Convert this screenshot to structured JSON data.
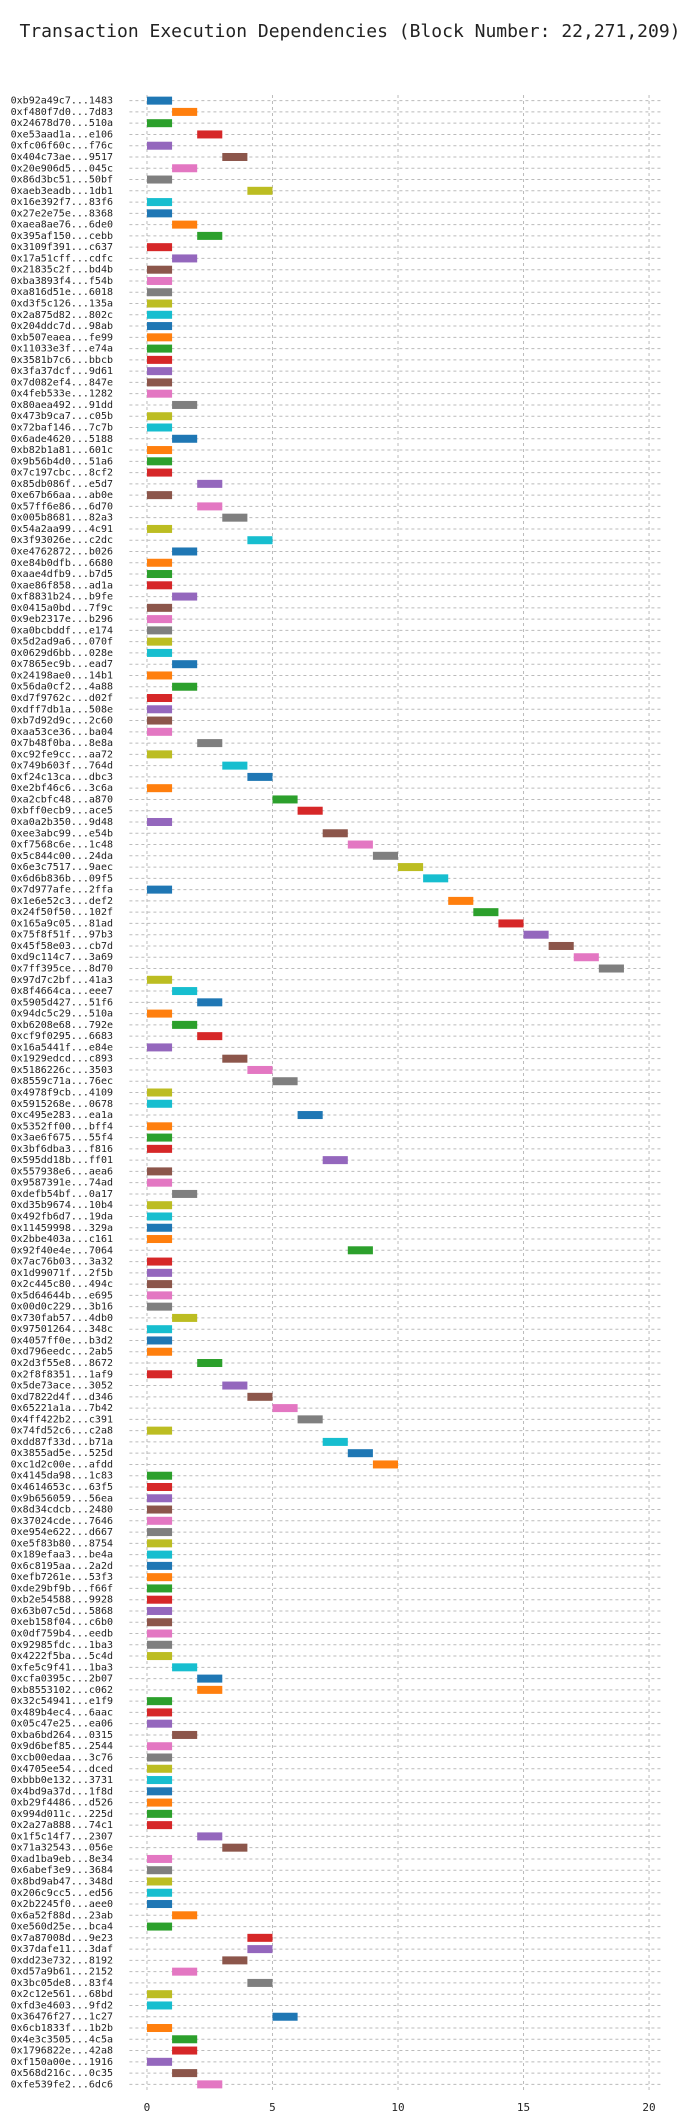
{
  "chart_data": {
    "type": "gantt",
    "title": "Transaction Execution Dependencies (Block Number: 22,271,209)",
    "colors": [
      "#1f77b4",
      "#ff7f0e",
      "#2ca02c",
      "#d62728",
      "#9467bd",
      "#8c564b",
      "#e377c2",
      "#7f7f7f",
      "#bcbd22",
      "#17becf"
    ],
    "categories": [
      "0xb92a49c7...1483",
      "0xf480f7d0...7d83",
      "0x24678d70...510a",
      "0xe53aad1a...e106",
      "0xfc06f60c...f76c",
      "0x404c73ae...9517",
      "0x20e906d5...045c",
      "0x86d3bc51...50bf",
      "0xaeb3eadb...1db1",
      "0x16e392f7...83f6",
      "0x27e2e75e...8368",
      "0xaea8ae76...6de0",
      "0x395af150...cebb",
      "0x3109f391...c637",
      "0x17a51cff...cdfc",
      "0x21835c2f...bd4b",
      "0xba3893f4...f54b",
      "0xa816d51e...6018",
      "0xd3f5c126...135a",
      "0x2a875d82...802c",
      "0x204ddc7d...98ab",
      "0xb507eaea...fe99",
      "0x11033e3f...e74a",
      "0x3581b7c6...bbcb",
      "0x3fa37dcf...9d61",
      "0x7d082ef4...847e",
      "0x4feb533e...1282",
      "0x80aea492...91dd",
      "0x473b9ca7...c05b",
      "0x72baf146...7c7b",
      "0x6ade4620...5188",
      "0xb82b1a81...601c",
      "0x9b56b4d0...51a6",
      "0x7c197cbc...8cf2",
      "0x85db086f...e5d7",
      "0xe67b66aa...ab0e",
      "0x57ff6e86...6d70",
      "0x005b8681...82a3",
      "0x54a2aa99...4c91",
      "0x3f93026e...c2dc",
      "0xe4762872...b026",
      "0xe84b0dfb...6680",
      "0xaae4dfb9...b7d5",
      "0xae86f858...ad1a",
      "0xf8831b24...b9fe",
      "0x0415a0bd...7f9c",
      "0x9eb2317e...b296",
      "0xa0bcbddf...e174",
      "0x5d2ad9a6...070f",
      "0x0629d6bb...028e",
      "0x7865ec9b...ead7",
      "0x24198ae0...14b1",
      "0x56da0cf2...4a88",
      "0xd7f9762c...d02f",
      "0xdff7db1a...508e",
      "0xb7d92d9c...2c60",
      "0xaa53ce36...ba04",
      "0x7b48f0ba...8e8a",
      "0xc92fe9cc...aa72",
      "0x749b603f...764d",
      "0xf24c13ca...dbc3",
      "0xe2bf46c6...3c6a",
      "0xa2cbfc48...a870",
      "0xbff0ecb9...ace5",
      "0xa0a2b350...9d48",
      "0xee3abc99...e54b",
      "0xf7568c6e...1c48",
      "0x5c844c00...24da",
      "0x6e3c7517...9aec",
      "0x6d6b836b...09f5",
      "0x7d977afe...2ffa",
      "0x1e6e52c3...def2",
      "0x24f50f50...102f",
      "0x165a9c05...81ad",
      "0x75f8f51f...97b3",
      "0x45f58e03...cb7d",
      "0xd9c114c7...3a69",
      "0x7ff395ce...8d70",
      "0x97d7c2bf...41a3",
      "0x8f4664ca...eee7",
      "0x5905d427...51f6",
      "0x94dc5c29...510a",
      "0xb6208e68...792e",
      "0xcf9f0295...6683",
      "0x16a5441f...e84e",
      "0x1929edcd...c893",
      "0x5186226c...3503",
      "0x8559c71a...76ec",
      "0x4978f9cb...4109",
      "0x5915268e...0678",
      "0xc495e283...ea1a",
      "0x5352ff00...bff4",
      "0x3ae6f675...55f4",
      "0x3bf6dba3...f816",
      "0x595dd18b...ff01",
      "0x557938e6...aea6",
      "0x9587391e...74ad",
      "0xdefb54bf...0a17",
      "0xd35b9674...10b4",
      "0x492fb6d7...19da",
      "0x11459998...329a",
      "0x2bbe403a...c161",
      "0x92f40e4e...7064",
      "0x7ac76b03...3a32",
      "0x1d99071f...2f5b",
      "0x2c445c80...494c",
      "0x5d64644b...e695",
      "0x00d0c229...3b16",
      "0x730fab57...4db0",
      "0x97501264...348c",
      "0x4057ff0e...b3d2",
      "0xd796eedc...2ab5",
      "0x2d3f55e8...8672",
      "0x2f8f8351...1af9",
      "0x5de73ace...3052",
      "0xd7822d4f...d346",
      "0x65221a1a...7b42",
      "0x4ff422b2...c391",
      "0x74fd52c6...c2a8",
      "0xdd87f33d...b71a",
      "0x3855ad5e...525d",
      "0xc1d2c00e...afdd",
      "0x4145da98...1c83",
      "0x4614653c...63f5",
      "0x9b656059...56ea",
      "0x8d34cdcb...2480",
      "0x37024cde...7646",
      "0xe954e622...d667",
      "0xe5f83b80...8754",
      "0x189efaa3...be4a",
      "0x6c8195aa...2a2d",
      "0xefb7261e...53f3",
      "0xde29bf9b...f66f",
      "0xb2e54588...9928",
      "0x63b07c5d...5868",
      "0xeb158f04...c6b0",
      "0x0df759b4...eedb",
      "0x92985fdc...1ba3",
      "0x4222f5ba...5c4d",
      "0xfe5c9f41...1ba3",
      "0xcfa0395c...2b07",
      "0xb8553102...c062",
      "0x32c54941...e1f9",
      "0x489b4ec4...6aac",
      "0x05c47e25...ea06",
      "0xba6bd264...0315",
      "0x9d6bef85...2544",
      "0xcb00edaa...3c76",
      "0x4705ee54...dced",
      "0xbbb0e132...3731",
      "0x4bd9a37d...1f8d",
      "0xb29f4486...d526",
      "0x994d011c...225d",
      "0x2a27a888...74c1",
      "0x1f5c14f7...2307",
      "0x71a32543...056e",
      "0xad1ba9eb...8e34",
      "0x6abef3e9...3684",
      "0x8bd9ab47...348d",
      "0x206c9cc5...ed56",
      "0x2b2245f0...aee0",
      "0x6a52f88d...23ab",
      "0xe560d25e...bca4",
      "0x7a87008d...9e23",
      "0x37dafe11...3daf",
      "0xdd23e732...8192",
      "0xd57a9b61...2152",
      "0x3bc05de8...83f4",
      "0x2c12e561...68bd",
      "0xfd3e4603...9fd2",
      "0x36476f27...1c27",
      "0x6cb1833f...1b2b",
      "0x4e3c3505...4c5a",
      "0x1796822e...42a8",
      "0xf150a00e...1916",
      "0x568d216c...0c35",
      "0xfe539fe2...6dc6"
    ],
    "start": [
      0,
      1,
      0,
      2,
      0,
      3,
      1,
      0,
      4,
      0,
      0,
      1,
      2,
      0,
      1,
      0,
      0,
      0,
      0,
      0,
      0,
      0,
      0,
      0,
      0,
      0,
      0,
      1,
      0,
      0,
      1,
      0,
      0,
      0,
      2,
      0,
      2,
      3,
      0,
      4,
      1,
      0,
      0,
      0,
      1,
      0,
      0,
      0,
      0,
      0,
      1,
      0,
      1,
      0,
      0,
      0,
      0,
      2,
      0,
      3,
      4,
      0,
      5,
      6,
      0,
      7,
      8,
      9,
      10,
      11,
      0,
      12,
      13,
      14,
      15,
      16,
      17,
      18,
      0,
      1,
      2,
      0,
      1,
      2,
      0,
      3,
      4,
      5,
      0,
      0,
      6,
      0,
      0,
      0,
      7,
      0,
      0,
      1,
      0,
      0,
      0,
      0,
      8,
      0,
      0,
      0,
      0,
      0,
      1,
      0,
      0,
      0,
      2,
      0,
      3,
      4,
      5,
      6,
      0,
      7,
      8,
      9,
      0,
      0,
      0,
      0,
      0,
      0,
      0,
      0,
      0,
      0,
      0,
      0,
      0,
      0,
      0,
      0,
      0,
      1,
      2,
      2,
      0,
      0,
      0,
      1,
      0,
      0,
      0,
      0,
      0,
      0,
      0,
      0,
      2,
      3,
      0,
      0,
      0,
      0,
      0,
      1,
      0,
      4,
      4,
      3,
      1,
      4,
      0,
      0,
      5,
      0,
      1,
      1,
      0,
      1,
      2
    ],
    "end": [
      1,
      2,
      1,
      3,
      1,
      4,
      2,
      1,
      5,
      1,
      1,
      2,
      3,
      1,
      2,
      1,
      1,
      1,
      1,
      1,
      1,
      1,
      1,
      1,
      1,
      1,
      1,
      2,
      1,
      1,
      2,
      1,
      1,
      1,
      3,
      1,
      3,
      4,
      1,
      5,
      2,
      1,
      1,
      1,
      2,
      1,
      1,
      1,
      1,
      1,
      2,
      1,
      2,
      1,
      1,
      1,
      1,
      3,
      1,
      4,
      5,
      1,
      6,
      7,
      1,
      8,
      9,
      10,
      11,
      12,
      1,
      13,
      14,
      15,
      16,
      17,
      18,
      19,
      1,
      2,
      3,
      1,
      2,
      3,
      1,
      4,
      5,
      6,
      1,
      1,
      7,
      1,
      1,
      1,
      8,
      1,
      1,
      2,
      1,
      1,
      1,
      1,
      9,
      1,
      1,
      1,
      1,
      1,
      2,
      1,
      1,
      1,
      3,
      1,
      4,
      5,
      6,
      7,
      1,
      8,
      9,
      10,
      1,
      1,
      1,
      1,
      1,
      1,
      1,
      1,
      1,
      1,
      1,
      1,
      1,
      1,
      1,
      1,
      1,
      2,
      3,
      3,
      1,
      1,
      1,
      2,
      1,
      1,
      1,
      1,
      1,
      1,
      1,
      1,
      3,
      4,
      1,
      1,
      1,
      1,
      1,
      2,
      1,
      5,
      5,
      4,
      2,
      5,
      1,
      1,
      6,
      1,
      2,
      2,
      1,
      2,
      3
    ],
    "xlim": [
      -0.7,
      20.5
    ],
    "xticks": [
      0,
      5,
      10,
      15,
      20
    ],
    "grid": true
  }
}
